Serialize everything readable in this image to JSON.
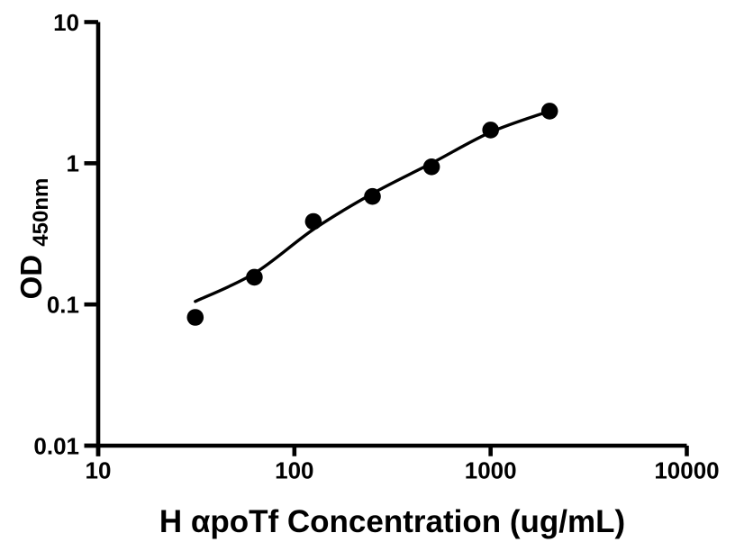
{
  "page": {
    "background": "#ffffff"
  },
  "chart_data": {
    "type": "scatter",
    "title": "",
    "xlabel": "H αpoTf Concentration (ug/mL)",
    "ylabel_main": "OD",
    "ylabel_sub": "450nm",
    "xscale": "log",
    "yscale": "log",
    "xlim": [
      10,
      10000
    ],
    "ylim": [
      0.01,
      10
    ],
    "grid": false,
    "legend": false,
    "axis_color": "#000000",
    "background_color": "#ffffff",
    "marker_color": "#000000",
    "x_ticks": [
      {
        "value": 10,
        "label": "10"
      },
      {
        "value": 100,
        "label": "100"
      },
      {
        "value": 1000,
        "label": "1000"
      },
      {
        "value": 10000,
        "label": "10000"
      }
    ],
    "y_ticks": [
      {
        "value": 10,
        "label": "10"
      },
      {
        "value": 1,
        "label": "1"
      },
      {
        "value": 0.1,
        "label": "0.1"
      },
      {
        "value": 0.01,
        "label": "0.01"
      }
    ],
    "series": [
      {
        "marker": "filled-circle",
        "color": "#000000",
        "points": [
          {
            "x": 31.25,
            "y": 0.081
          },
          {
            "x": 62.5,
            "y": 0.156
          },
          {
            "x": 125,
            "y": 0.387
          },
          {
            "x": 250,
            "y": 0.582
          },
          {
            "x": 500,
            "y": 0.943
          },
          {
            "x": 1000,
            "y": 1.72
          },
          {
            "x": 2000,
            "y": 2.34
          }
        ]
      }
    ],
    "fit_curve": {
      "color": "#000000",
      "points": [
        {
          "x": 31.25,
          "y": 0.105
        },
        {
          "x": 62.5,
          "y": 0.166
        },
        {
          "x": 125,
          "y": 0.34
        },
        {
          "x": 250,
          "y": 0.61
        },
        {
          "x": 500,
          "y": 1.0
        },
        {
          "x": 1000,
          "y": 1.66
        },
        {
          "x": 2000,
          "y": 2.34
        }
      ]
    }
  }
}
